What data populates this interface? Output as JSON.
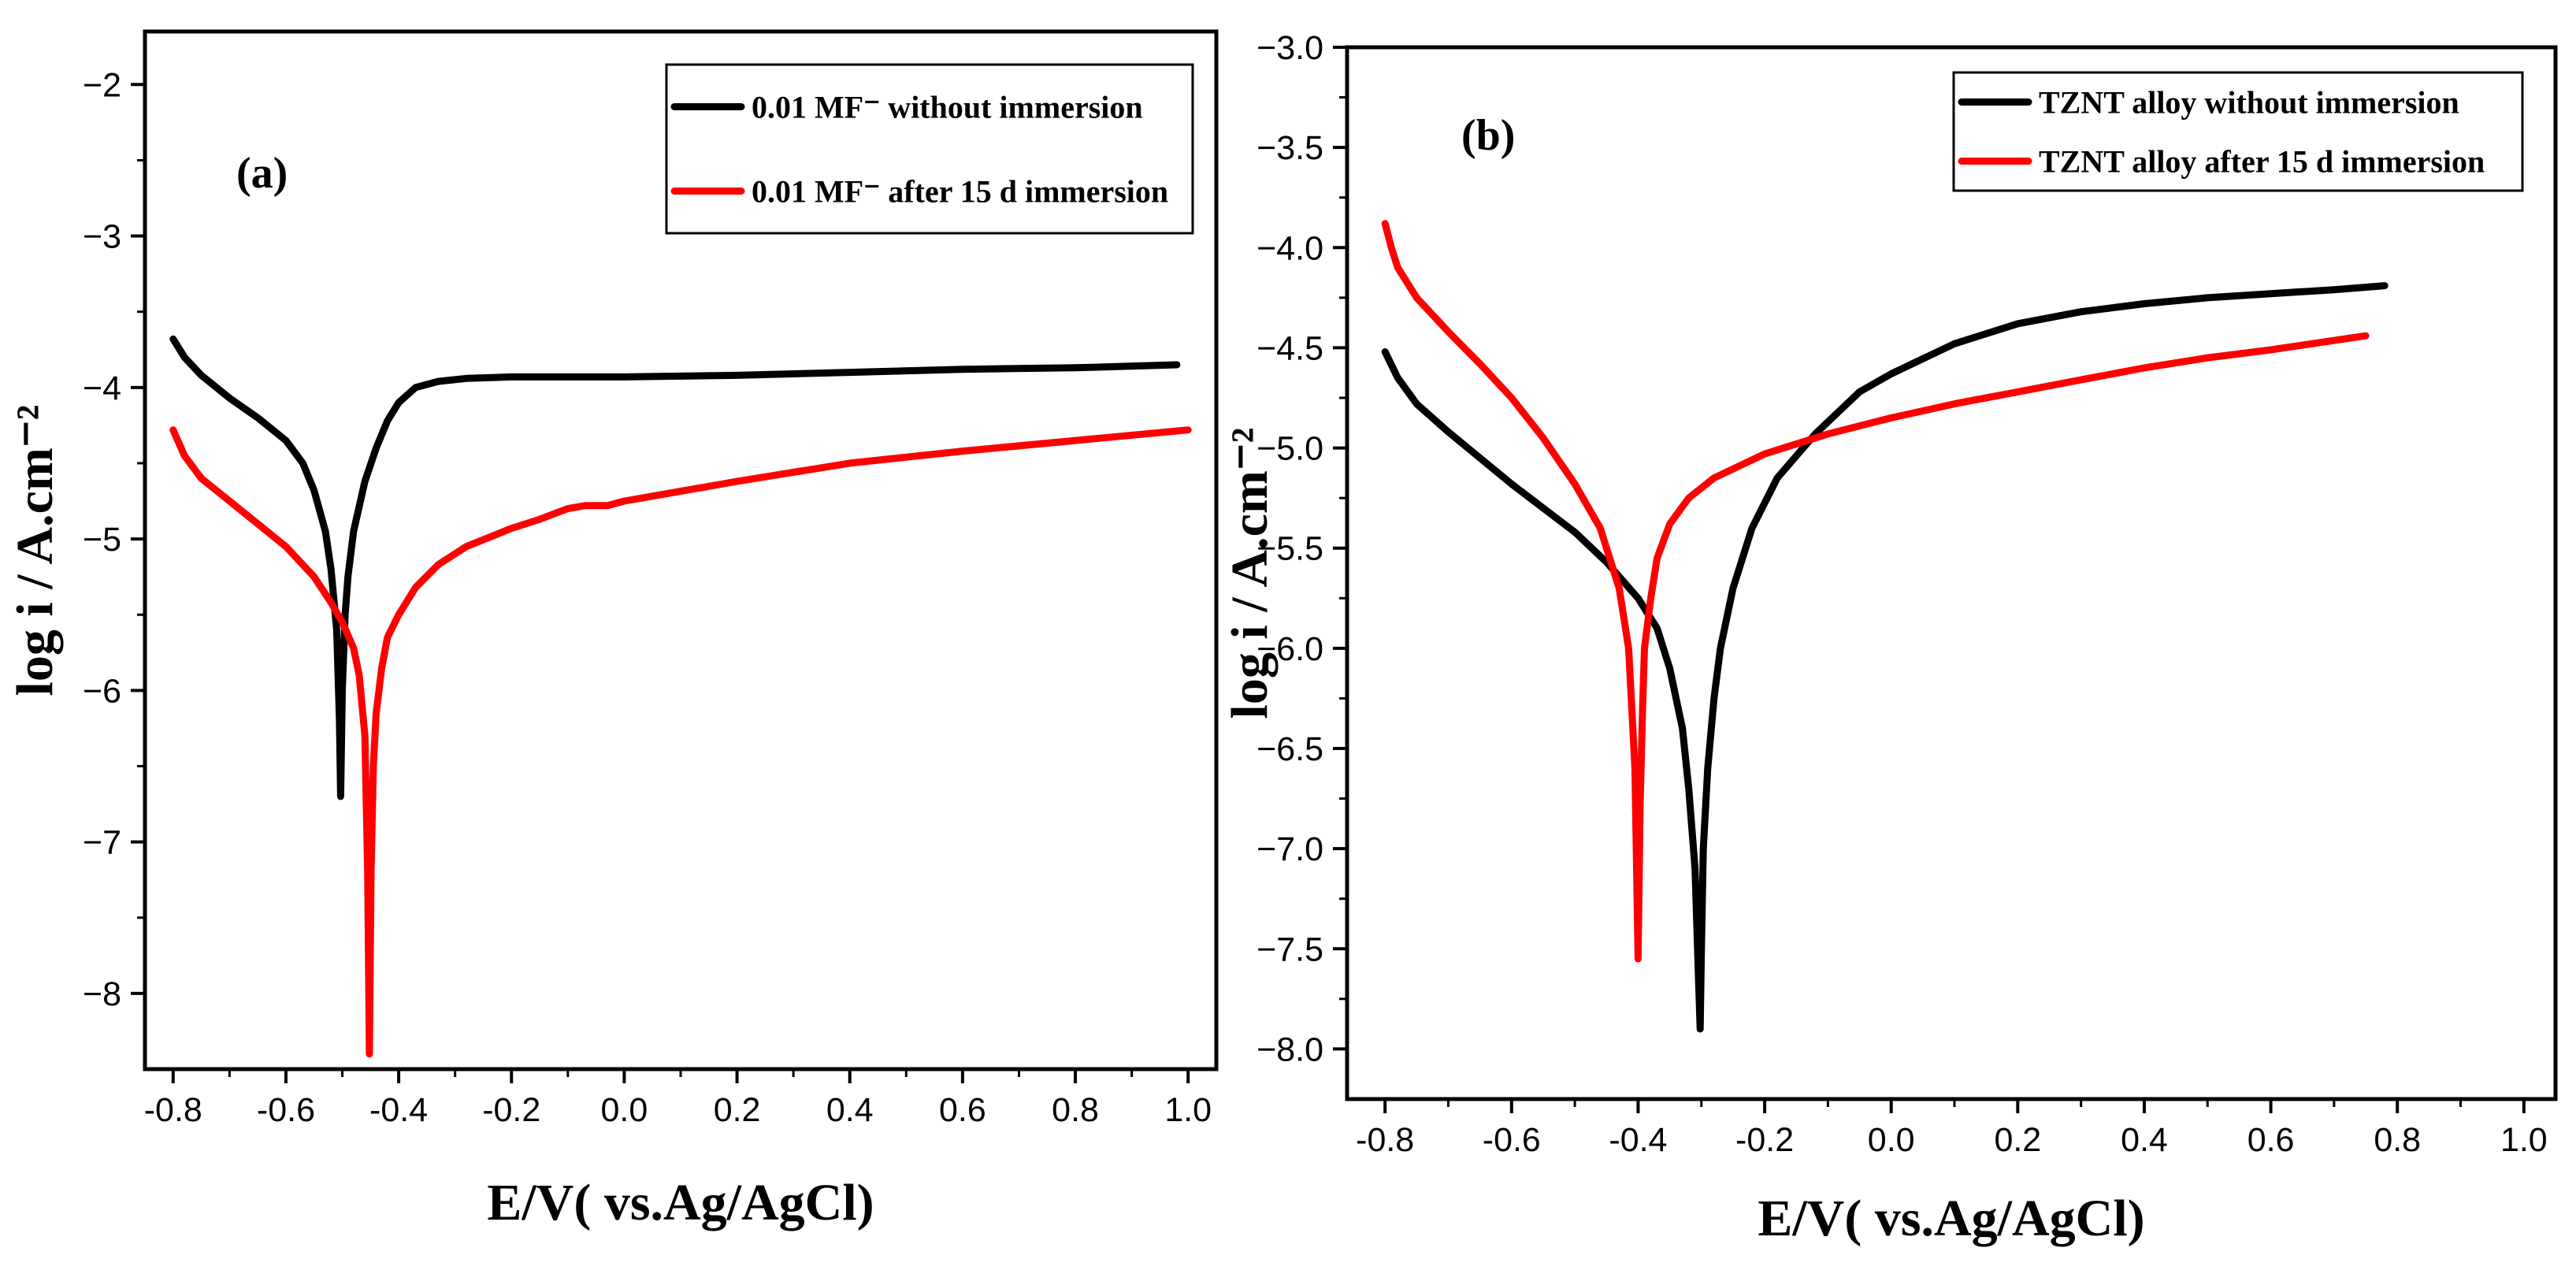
{
  "chart_data": [
    {
      "type": "line",
      "panel_label": "(a)",
      "xlabel": "E/V( vs.Ag/AgCl)",
      "ylabel": "log i / A.cm⁻²",
      "xlim": [
        -0.85,
        1.05
      ],
      "ylim": [
        -8.5,
        -1.65
      ],
      "xticks": [
        -0.8,
        -0.6,
        -0.4,
        -0.2,
        0.0,
        0.2,
        0.4,
        0.6,
        0.8,
        1.0
      ],
      "xtick_labels": [
        "-0.8",
        "-0.6",
        "-0.4",
        "-0.2",
        "0.0",
        "0.2",
        "0.4",
        "0.6",
        "0.8",
        "1.0"
      ],
      "yticks": [
        -8,
        -7,
        -6,
        -5,
        -4,
        -3,
        -2
      ],
      "ytick_labels": [
        "−8",
        "−7",
        "−6",
        "−5",
        "−4",
        "−3",
        "−2"
      ],
      "legend_position": "top-right",
      "series": [
        {
          "name": "0.01  MF⁻ without immersion",
          "color": "#000000",
          "x": [
            -0.8,
            -0.78,
            -0.75,
            -0.7,
            -0.65,
            -0.6,
            -0.57,
            -0.55,
            -0.53,
            -0.52,
            -0.51,
            -0.505,
            -0.503,
            -0.5,
            -0.495,
            -0.49,
            -0.48,
            -0.46,
            -0.44,
            -0.42,
            -0.4,
            -0.37,
            -0.33,
            -0.28,
            -0.2,
            -0.1,
            0.0,
            0.2,
            0.4,
            0.6,
            0.8,
            0.98
          ],
          "y": [
            -3.68,
            -3.8,
            -3.92,
            -4.07,
            -4.2,
            -4.35,
            -4.5,
            -4.68,
            -4.95,
            -5.2,
            -5.6,
            -6.2,
            -6.7,
            -6.0,
            -5.5,
            -5.25,
            -4.95,
            -4.62,
            -4.4,
            -4.22,
            -4.1,
            -4.0,
            -3.96,
            -3.94,
            -3.93,
            -3.93,
            -3.93,
            -3.92,
            -3.9,
            -3.88,
            -3.87,
            -3.85
          ]
        },
        {
          "name": "0.01  MF⁻ after 15 d immersion",
          "color": "#ff0000",
          "x": [
            -0.8,
            -0.78,
            -0.75,
            -0.7,
            -0.65,
            -0.6,
            -0.55,
            -0.52,
            -0.5,
            -0.48,
            -0.47,
            -0.46,
            -0.455,
            -0.452,
            -0.449,
            -0.445,
            -0.44,
            -0.43,
            -0.42,
            -0.4,
            -0.37,
            -0.33,
            -0.28,
            -0.2,
            -0.15,
            -0.1,
            -0.07,
            -0.03,
            0.0,
            0.2,
            0.4,
            0.6,
            0.8,
            1.0
          ],
          "y": [
            -4.28,
            -4.45,
            -4.6,
            -4.75,
            -4.9,
            -5.05,
            -5.25,
            -5.42,
            -5.55,
            -5.72,
            -5.9,
            -6.3,
            -7.2,
            -8.4,
            -7.2,
            -6.5,
            -6.15,
            -5.85,
            -5.65,
            -5.5,
            -5.32,
            -5.17,
            -5.05,
            -4.93,
            -4.87,
            -4.8,
            -4.78,
            -4.78,
            -4.75,
            -4.62,
            -4.5,
            -4.42,
            -4.35,
            -4.28
          ]
        }
      ]
    },
    {
      "type": "line",
      "panel_label": "(b)",
      "xlabel": "E/V( vs.Ag/AgCl)",
      "ylabel": "log i / A.cm⁻²",
      "xlim": [
        -0.86,
        1.05
      ],
      "ylim": [
        -8.25,
        -3.0
      ],
      "xticks": [
        -0.8,
        -0.6,
        -0.4,
        -0.2,
        0.0,
        0.2,
        0.4,
        0.6,
        0.8,
        1.0
      ],
      "xtick_labels": [
        "-0.8",
        "-0.6",
        "-0.4",
        "-0.2",
        "0.0",
        "0.2",
        "0.4",
        "0.6",
        "0.8",
        "1.0"
      ],
      "yticks": [
        -8.0,
        -7.5,
        -7.0,
        -6.5,
        -6.0,
        -5.5,
        -5.0,
        -4.5,
        -4.0,
        -3.5,
        -3.0
      ],
      "ytick_labels": [
        "−8.0",
        "−7.5",
        "−7.0",
        "−6.5",
        "−6.0",
        "−5.5",
        "−5.0",
        "−4.5",
        "−4.0",
        "−3.5",
        "−3.0"
      ],
      "legend_position": "top-right",
      "series": [
        {
          "name": "TZNT alloy without immersion",
          "color": "#000000",
          "x": [
            -0.8,
            -0.78,
            -0.75,
            -0.7,
            -0.65,
            -0.6,
            -0.55,
            -0.5,
            -0.45,
            -0.4,
            -0.37,
            -0.35,
            -0.33,
            -0.32,
            -0.31,
            -0.305,
            -0.302,
            -0.3,
            -0.297,
            -0.29,
            -0.28,
            -0.27,
            -0.25,
            -0.22,
            -0.18,
            -0.12,
            -0.05,
            0.0,
            0.1,
            0.2,
            0.3,
            0.4,
            0.5,
            0.6,
            0.7,
            0.78
          ],
          "y": [
            -4.52,
            -4.65,
            -4.78,
            -4.92,
            -5.05,
            -5.18,
            -5.3,
            -5.42,
            -5.57,
            -5.75,
            -5.9,
            -6.1,
            -6.4,
            -6.7,
            -7.1,
            -7.6,
            -7.9,
            -7.5,
            -7.0,
            -6.6,
            -6.25,
            -6.0,
            -5.7,
            -5.4,
            -5.15,
            -4.93,
            -4.72,
            -4.63,
            -4.48,
            -4.38,
            -4.32,
            -4.28,
            -4.25,
            -4.23,
            -4.21,
            -4.19
          ]
        },
        {
          "name": "TZNT alloy after 15 d immersion",
          "color": "#ff0000",
          "x": [
            -0.8,
            -0.79,
            -0.78,
            -0.75,
            -0.7,
            -0.65,
            -0.6,
            -0.55,
            -0.5,
            -0.46,
            -0.43,
            -0.415,
            -0.405,
            -0.4,
            -0.397,
            -0.393,
            -0.39,
            -0.38,
            -0.37,
            -0.35,
            -0.32,
            -0.28,
            -0.2,
            -0.1,
            0.0,
            0.1,
            0.2,
            0.3,
            0.4,
            0.5,
            0.6,
            0.75
          ],
          "y": [
            -3.88,
            -4.0,
            -4.1,
            -4.25,
            -4.42,
            -4.58,
            -4.75,
            -4.95,
            -5.18,
            -5.4,
            -5.7,
            -6.0,
            -6.6,
            -7.55,
            -6.8,
            -6.3,
            -6.0,
            -5.75,
            -5.55,
            -5.38,
            -5.25,
            -5.15,
            -5.03,
            -4.93,
            -4.85,
            -4.78,
            -4.72,
            -4.66,
            -4.6,
            -4.55,
            -4.51,
            -4.44
          ]
        }
      ]
    }
  ]
}
